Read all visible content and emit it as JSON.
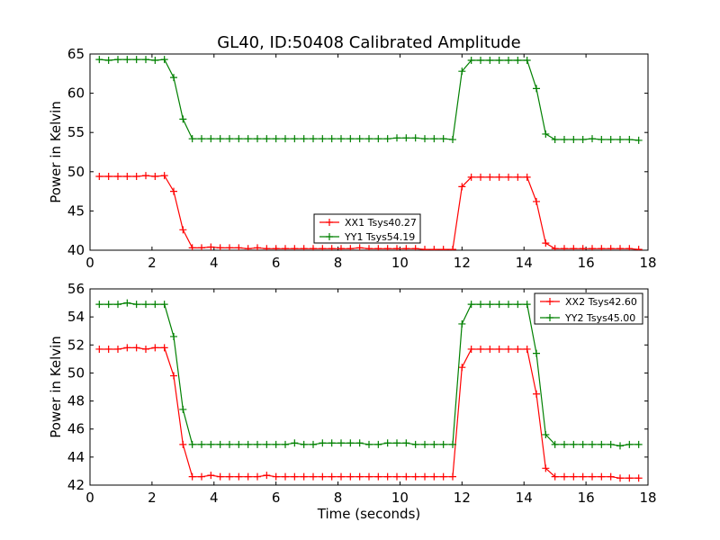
{
  "figure_title": "GL40, ID:50408 Calibrated Amplitude",
  "xlabel": "Time (seconds)",
  "chart_data": [
    {
      "type": "line",
      "title": "GL40, ID:50408 Calibrated Amplitude",
      "xlabel": "",
      "ylabel": "Power in Kelvin",
      "xlim": [
        0,
        18
      ],
      "ylim": [
        40,
        65
      ],
      "xticks": [
        0,
        2,
        4,
        6,
        8,
        10,
        12,
        14,
        16,
        18
      ],
      "yticks": [
        40,
        45,
        50,
        55,
        60,
        65
      ],
      "grid": false,
      "legend_placement": "lower-center",
      "x": [
        0.3,
        0.6,
        0.9,
        1.2,
        1.5,
        1.8,
        2.1,
        2.4,
        2.7,
        3.0,
        3.3,
        3.6,
        3.9,
        4.2,
        4.5,
        4.8,
        5.1,
        5.4,
        5.7,
        6.0,
        6.3,
        6.6,
        6.9,
        7.2,
        7.5,
        7.8,
        8.1,
        8.4,
        8.7,
        9.0,
        9.3,
        9.6,
        9.9,
        10.2,
        10.5,
        10.8,
        11.1,
        11.4,
        11.7,
        12.0,
        12.3,
        12.6,
        12.9,
        13.2,
        13.5,
        13.8,
        14.1,
        14.4,
        14.7,
        15.0,
        15.3,
        15.6,
        15.9,
        16.2,
        16.5,
        16.8,
        17.1,
        17.4,
        17.7
      ],
      "series": [
        {
          "name": "XX1 Tsys40.27",
          "color": "#ff0000",
          "values": [
            49.4,
            49.4,
            49.4,
            49.4,
            49.4,
            49.5,
            49.4,
            49.5,
            47.5,
            42.6,
            40.3,
            40.3,
            40.4,
            40.3,
            40.3,
            40.3,
            40.2,
            40.3,
            40.2,
            40.2,
            40.2,
            40.2,
            40.2,
            40.2,
            40.2,
            40.2,
            40.2,
            40.2,
            40.3,
            40.2,
            40.2,
            40.2,
            40.2,
            40.2,
            40.2,
            40.1,
            40.1,
            40.1,
            40.1,
            48.1,
            49.3,
            49.3,
            49.3,
            49.3,
            49.3,
            49.3,
            49.3,
            46.2,
            40.9,
            40.2,
            40.2,
            40.2,
            40.2,
            40.2,
            40.2,
            40.2,
            40.2,
            40.2,
            40.1
          ]
        },
        {
          "name": "YY1 Tsys54.19",
          "color": "#008000",
          "values": [
            64.3,
            64.2,
            64.3,
            64.3,
            64.3,
            64.3,
            64.2,
            64.3,
            62.0,
            56.7,
            54.2,
            54.2,
            54.2,
            54.2,
            54.2,
            54.2,
            54.2,
            54.2,
            54.2,
            54.2,
            54.2,
            54.2,
            54.2,
            54.2,
            54.2,
            54.2,
            54.2,
            54.2,
            54.2,
            54.2,
            54.2,
            54.2,
            54.3,
            54.3,
            54.3,
            54.2,
            54.2,
            54.2,
            54.1,
            62.8,
            64.2,
            64.2,
            64.2,
            64.2,
            64.2,
            64.2,
            64.2,
            60.6,
            54.8,
            54.1,
            54.1,
            54.1,
            54.1,
            54.2,
            54.1,
            54.1,
            54.1,
            54.1,
            54.0
          ]
        }
      ]
    },
    {
      "type": "line",
      "title": "",
      "xlabel": "Time (seconds)",
      "ylabel": "Power in Kelvin",
      "xlim": [
        0,
        18
      ],
      "ylim": [
        42,
        56
      ],
      "xticks": [
        0,
        2,
        4,
        6,
        8,
        10,
        12,
        14,
        16,
        18
      ],
      "yticks": [
        42,
        44,
        46,
        48,
        50,
        52,
        54,
        56
      ],
      "grid": false,
      "legend_placement": "top-right",
      "x": [
        0.3,
        0.6,
        0.9,
        1.2,
        1.5,
        1.8,
        2.1,
        2.4,
        2.7,
        3.0,
        3.3,
        3.6,
        3.9,
        4.2,
        4.5,
        4.8,
        5.1,
        5.4,
        5.7,
        6.0,
        6.3,
        6.6,
        6.9,
        7.2,
        7.5,
        7.8,
        8.1,
        8.4,
        8.7,
        9.0,
        9.3,
        9.6,
        9.9,
        10.2,
        10.5,
        10.8,
        11.1,
        11.4,
        11.7,
        12.0,
        12.3,
        12.6,
        12.9,
        13.2,
        13.5,
        13.8,
        14.1,
        14.4,
        14.7,
        15.0,
        15.3,
        15.6,
        15.9,
        16.2,
        16.5,
        16.8,
        17.1,
        17.4,
        17.7
      ],
      "series": [
        {
          "name": "XX2 Tsys42.60",
          "color": "#ff0000",
          "values": [
            51.7,
            51.7,
            51.7,
            51.8,
            51.8,
            51.7,
            51.8,
            51.8,
            49.8,
            44.9,
            42.6,
            42.6,
            42.7,
            42.6,
            42.6,
            42.6,
            42.6,
            42.6,
            42.7,
            42.6,
            42.6,
            42.6,
            42.6,
            42.6,
            42.6,
            42.6,
            42.6,
            42.6,
            42.6,
            42.6,
            42.6,
            42.6,
            42.6,
            42.6,
            42.6,
            42.6,
            42.6,
            42.6,
            42.6,
            50.4,
            51.7,
            51.7,
            51.7,
            51.7,
            51.7,
            51.7,
            51.7,
            48.5,
            43.2,
            42.6,
            42.6,
            42.6,
            42.6,
            42.6,
            42.6,
            42.6,
            42.5,
            42.5,
            42.5
          ]
        },
        {
          "name": "YY2 Tsys45.00",
          "color": "#008000",
          "values": [
            54.9,
            54.9,
            54.9,
            55.0,
            54.9,
            54.9,
            54.9,
            54.9,
            52.6,
            47.4,
            44.9,
            44.9,
            44.9,
            44.9,
            44.9,
            44.9,
            44.9,
            44.9,
            44.9,
            44.9,
            44.9,
            45.0,
            44.9,
            44.9,
            45.0,
            45.0,
            45.0,
            45.0,
            45.0,
            44.9,
            44.9,
            45.0,
            45.0,
            45.0,
            44.9,
            44.9,
            44.9,
            44.9,
            44.9,
            53.5,
            54.9,
            54.9,
            54.9,
            54.9,
            54.9,
            54.9,
            54.9,
            51.4,
            45.6,
            44.9,
            44.9,
            44.9,
            44.9,
            44.9,
            44.9,
            44.9,
            44.8,
            44.9,
            44.9
          ]
        }
      ]
    }
  ]
}
